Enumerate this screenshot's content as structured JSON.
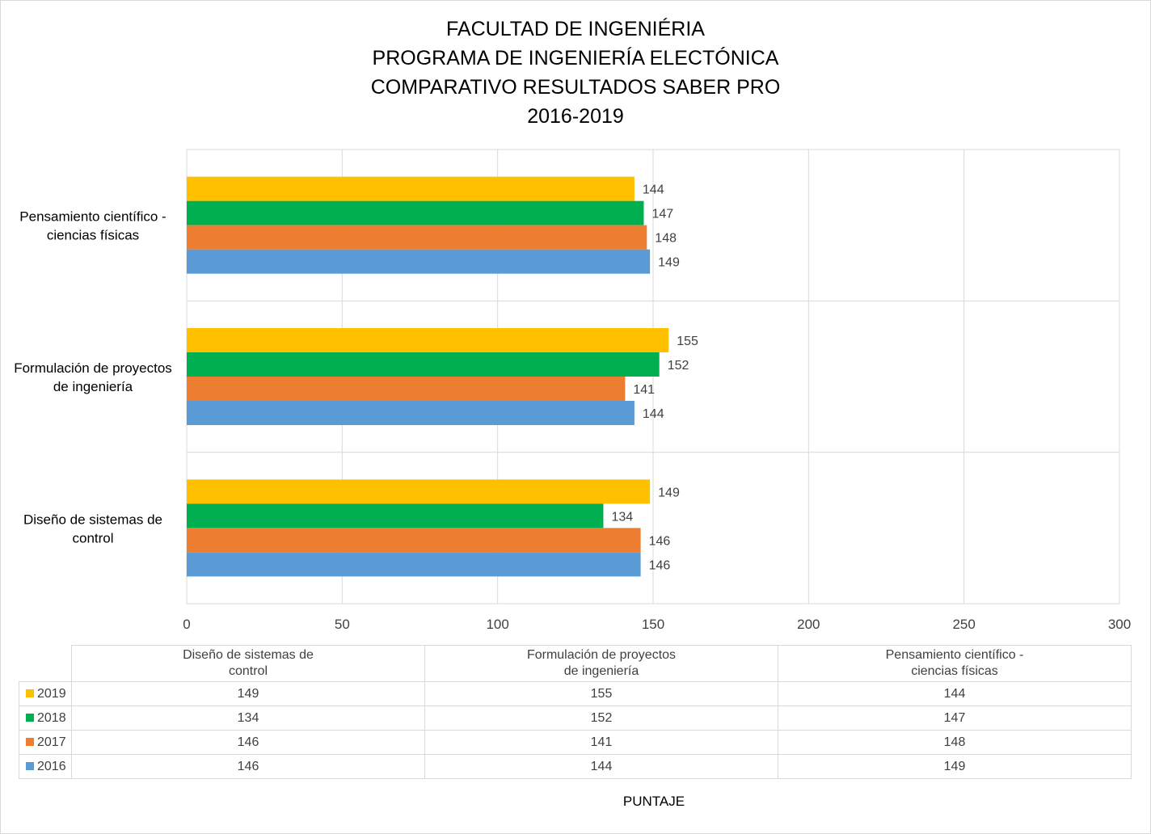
{
  "title_lines": [
    "FACULTAD DE INGENIÉRIA",
    "PROGRAMA DE INGENIERÍA ELECTÓNICA",
    "COMPARATIVO RESULTADOS SABER PRO",
    "2016-2019"
  ],
  "chart_data": {
    "type": "bar",
    "orientation": "horizontal",
    "title": "FACULTAD DE INGENIÉRIA PROGRAMA DE INGENIERÍA ELECTÓNICA COMPARATIVO RESULTADOS SABER PRO 2016-2019",
    "xlabel": "PUNTAJE",
    "ylabel": "",
    "xlim": [
      0,
      300
    ],
    "x_ticks": [
      0,
      50,
      100,
      150,
      200,
      250,
      300
    ],
    "grid": true,
    "legend_placement": "data-table",
    "categories": [
      "Diseño de sistemas de control",
      "Formulación de proyectos de ingeniería",
      "Pensamiento científico - ciencias físicas"
    ],
    "category_label_lines": [
      [
        "Diseño de sistemas de",
        "control"
      ],
      [
        "Formulación de proyectos",
        "de ingeniería"
      ],
      [
        "Pensamiento científico -",
        "ciencias físicas"
      ]
    ],
    "series": [
      {
        "name": "2019",
        "color": "#FFC000",
        "values": [
          149,
          155,
          144
        ]
      },
      {
        "name": "2018",
        "color": "#00B050",
        "values": [
          134,
          152,
          147
        ]
      },
      {
        "name": "2017",
        "color": "#ED7D31",
        "values": [
          146,
          141,
          148
        ]
      },
      {
        "name": "2016",
        "color": "#5B9BD5",
        "values": [
          146,
          144,
          149
        ]
      }
    ]
  },
  "colors": {
    "grid": "#d9d9d9",
    "text": "#404040"
  }
}
